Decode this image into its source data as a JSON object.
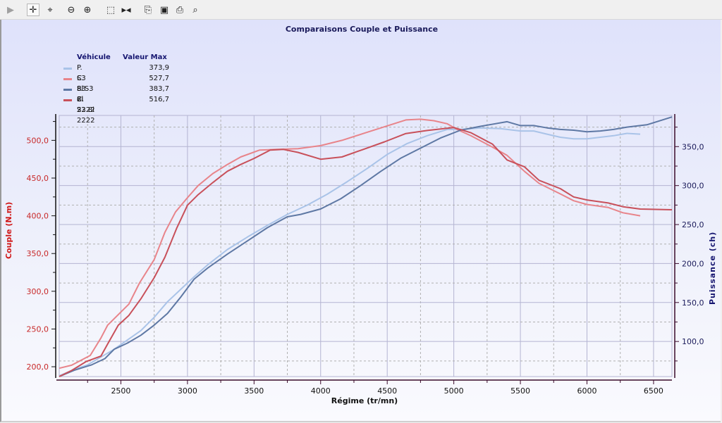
{
  "toolbar": {
    "buttons": [
      {
        "name": "play-icon",
        "glyph": "▶"
      },
      {
        "name": "pan-icon",
        "glyph": "✛"
      },
      {
        "name": "zoom-area-icon",
        "glyph": "⌖"
      },
      {
        "name": "zoom-out-icon",
        "glyph": "⊖"
      },
      {
        "name": "zoom-in-icon",
        "glyph": "⊕"
      },
      {
        "name": "select-rectangle-icon",
        "glyph": "⬚"
      },
      {
        "name": "fit-width-icon",
        "glyph": "▸◂"
      },
      {
        "name": "copy-icon",
        "glyph": "⎘"
      },
      {
        "name": "save-icon",
        "glyph": "▣"
      },
      {
        "name": "print-icon",
        "glyph": "⎙"
      },
      {
        "name": "print-preview-icon",
        "glyph": "⌕"
      }
    ]
  },
  "chart_data": {
    "type": "line",
    "title": "Comparaisons Couple et Puissance",
    "xlabel": "Régime (tr/mn)",
    "ylabel": "Couple (N.m)",
    "y2label": "Puissance (ch)",
    "xlim": [
      2037,
      6638
    ],
    "ylim": [
      187,
      533
    ],
    "y2lim": [
      55,
      390
    ],
    "xticks": [
      2500,
      3000,
      3500,
      4000,
      4500,
      5000,
      5500,
      6000,
      6500
    ],
    "yticks": [
      "200,0",
      "250,0",
      "300,0",
      "350,0",
      "400,0",
      "450,0",
      "500,0"
    ],
    "yticks_values": [
      200,
      250,
      300,
      350,
      400,
      450,
      500
    ],
    "y2ticks": [
      "100,0",
      "150,0",
      "200,0",
      "250,0",
      "300,0",
      "350,0"
    ],
    "y2ticks_values": [
      100,
      150,
      200,
      250,
      300,
      350
    ],
    "grid": true,
    "legend_position": "top-left",
    "legend_headers": {
      "name": "Véhicule",
      "value": "Valeur Max"
    },
    "series": [
      {
        "name": "P. S3 8l 2",
        "max": "373,9",
        "axis": "right",
        "color": "#a9c3e8",
        "x": [
          2037,
          2150,
          2250,
          2350,
          2450,
          2550,
          2650,
          2750,
          2850,
          2950,
          3050,
          3150,
          3300,
          3450,
          3600,
          3750,
          3900,
          4050,
          4200,
          4350,
          4500,
          4650,
          4800,
          4950,
          5050,
          5200,
          5350,
          5500,
          5600,
          5700,
          5800,
          5900,
          6000,
          6100,
          6200,
          6300,
          6400
        ],
        "y": [
          56,
          64,
          70,
          80,
          90,
          102,
          114,
          131,
          151,
          167,
          183,
          198,
          218,
          234,
          249,
          263,
          275,
          289,
          305,
          322,
          340,
          354,
          364,
          372,
          372,
          374,
          373,
          370,
          370,
          366,
          362,
          360,
          360,
          362,
          364,
          367,
          366
        ]
      },
      {
        "name": "C. S3 8l 2",
        "max": "527,7",
        "axis": "left",
        "color": "#e8848a",
        "x": [
          2037,
          2130,
          2270,
          2350,
          2400,
          2480,
          2560,
          2640,
          2750,
          2830,
          2910,
          3000,
          3080,
          3190,
          3300,
          3400,
          3540,
          3670,
          3830,
          4000,
          4160,
          4320,
          4480,
          4640,
          4750,
          4850,
          4950,
          5030,
          5130,
          5290,
          5400,
          5530,
          5640,
          5800,
          5900,
          6000,
          6160,
          6270,
          6400
        ],
        "y": [
          198,
          202,
          215,
          238,
          255,
          269,
          283,
          311,
          342,
          378,
          405,
          424,
          440,
          456,
          468,
          478,
          487,
          488,
          489,
          493,
          500,
          509,
          518,
          527,
          528,
          526,
          522,
          514,
          506,
          491,
          480,
          459,
          443,
          429,
          420,
          415,
          411,
          404,
          400
        ]
      },
      {
        "name": "P. S3 8l 2222",
        "max": "383,7",
        "axis": "right",
        "color": "#5e78a4",
        "x": [
          2037,
          2150,
          2280,
          2380,
          2450,
          2550,
          2650,
          2750,
          2850,
          2950,
          3050,
          3150,
          3300,
          3450,
          3600,
          3750,
          3850,
          4000,
          4150,
          4300,
          4450,
          4600,
          4750,
          4900,
          5050,
          5200,
          5300,
          5400,
          5500,
          5600,
          5700,
          5800,
          5900,
          6000,
          6100,
          6200,
          6300,
          6450,
          6638
        ],
        "y": [
          55,
          63,
          70,
          78,
          90,
          98,
          108,
          121,
          136,
          157,
          180,
          194,
          212,
          229,
          246,
          260,
          263,
          270,
          283,
          300,
          318,
          335,
          348,
          361,
          371,
          376,
          379,
          382,
          377,
          377,
          374,
          372,
          371,
          369,
          370,
          372,
          375,
          378,
          388
        ]
      },
      {
        "name": "C. S3 8l 2222",
        "max": "516,7",
        "axis": "left",
        "color": "#c8505a",
        "x": [
          2037,
          2130,
          2240,
          2350,
          2400,
          2480,
          2560,
          2650,
          2750,
          2830,
          2920,
          3000,
          3080,
          3190,
          3300,
          3400,
          3500,
          3620,
          3720,
          3830,
          4000,
          4160,
          4320,
          4480,
          4640,
          4800,
          5000,
          5130,
          5290,
          5400,
          5530,
          5640,
          5800,
          5900,
          6000,
          6160,
          6270,
          6400,
          6638
        ],
        "y": [
          187,
          195,
          207,
          214,
          230,
          255,
          268,
          290,
          318,
          345,
          384,
          414,
          428,
          444,
          459,
          468,
          476,
          487,
          488,
          484,
          475,
          478,
          488,
          498,
          509,
          513,
          517,
          510,
          495,
          474,
          465,
          447,
          436,
          425,
          421,
          417,
          412,
          409,
          408
        ]
      }
    ]
  }
}
